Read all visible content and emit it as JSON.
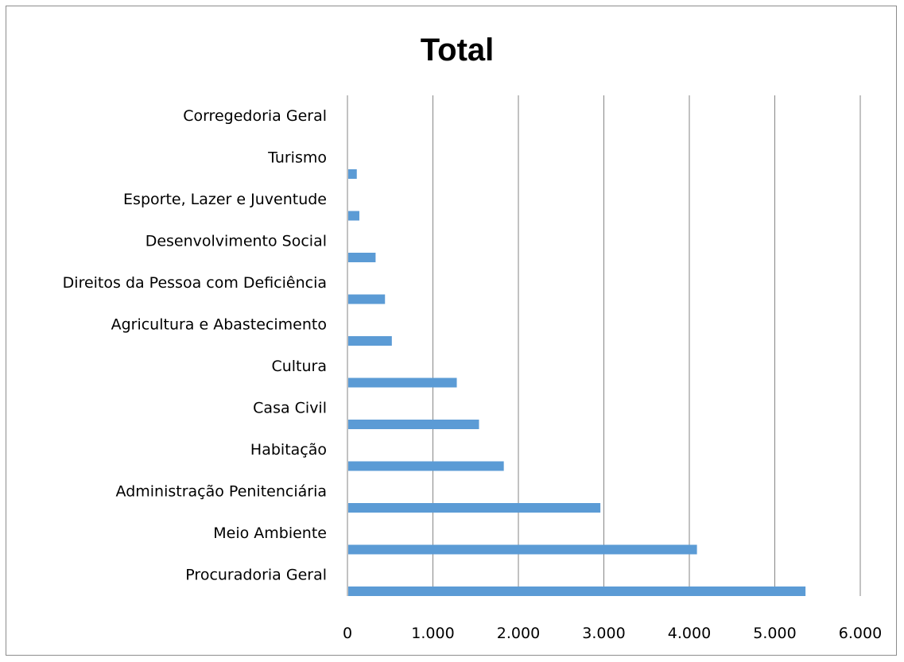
{
  "chart_data": {
    "type": "bar",
    "orientation": "horizontal",
    "title": "Total",
    "xlabel": "",
    "ylabel": "",
    "categories": [
      "Procuradoria Geral",
      "Meio Ambiente",
      "Administração Penitenciária",
      "Habitação",
      "Casa Civil",
      "Cultura",
      "Agricultura e Abastecimento",
      "Direitos da Pessoa com Deficiência",
      "Desenvolvimento Social",
      "Esporte, Lazer e Juventude",
      "Turismo",
      "Corregedoria Geral"
    ],
    "values": [
      5350,
      4080,
      2950,
      1820,
      1530,
      1270,
      510,
      430,
      320,
      130,
      100,
      0
    ],
    "xlim": [
      0,
      6000
    ],
    "ticks": [
      0,
      1000,
      2000,
      3000,
      4000,
      5000,
      6000
    ],
    "tick_labels": [
      "0",
      "1.000",
      "2.000",
      "3.000",
      "4.000",
      "5.000",
      "6.000"
    ],
    "grid": "vertical",
    "legend": "none",
    "bar_color": "#5b9bd5",
    "gridline_color": "#868686"
  }
}
